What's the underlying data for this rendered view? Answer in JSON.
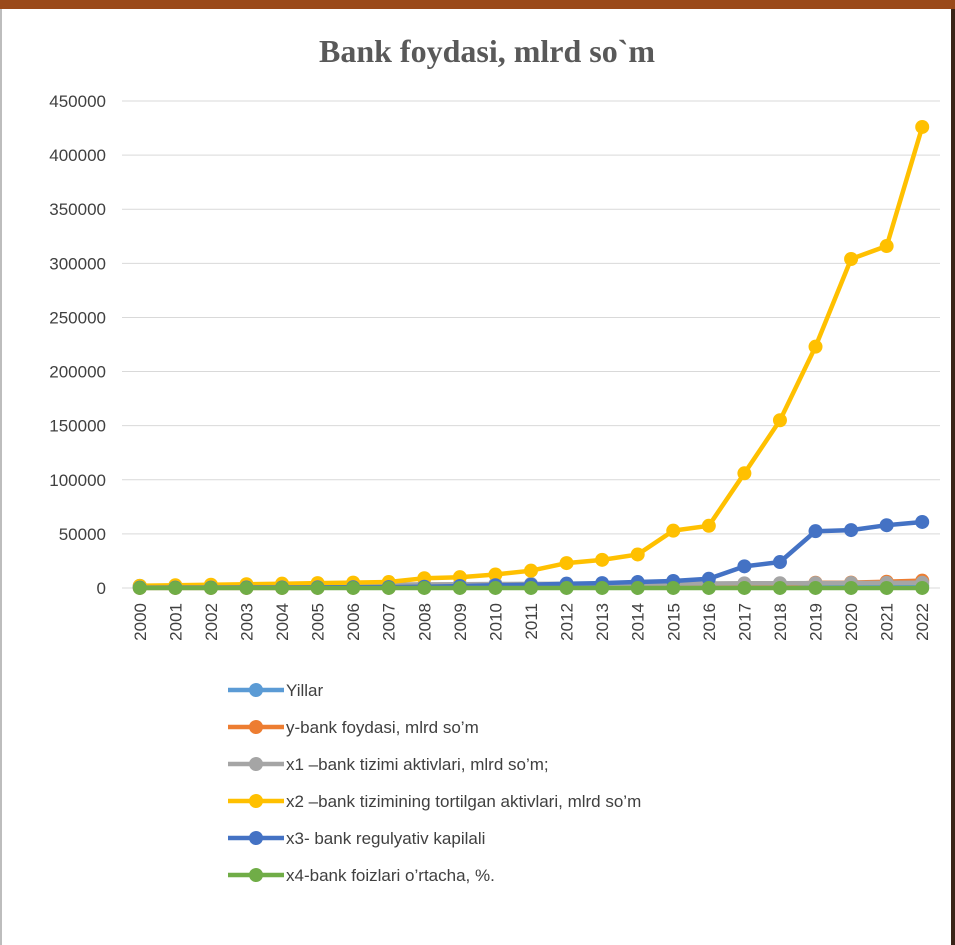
{
  "chart_data": {
    "type": "line",
    "title": "Bank foydasi, mlrd so`m",
    "xlabel": "",
    "ylabel": "",
    "ylim": [
      0,
      450000
    ],
    "yticks": [
      "0",
      "50000",
      "100000",
      "150000",
      "200000",
      "250000",
      "300000",
      "350000",
      "400000",
      "450000"
    ],
    "categories": [
      "2000",
      "2001",
      "2002",
      "2003",
      "2004",
      "2005",
      "2006",
      "2007",
      "2008",
      "2009",
      "2010",
      "2011",
      "2012",
      "2013",
      "2014",
      "2015",
      "2016",
      "2017",
      "2018",
      "2019",
      "2020",
      "2021",
      "2022"
    ],
    "grid": true,
    "legend_position": "bottom",
    "series": [
      {
        "name": "Yillar",
        "color": "#5b9bd5",
        "values": [
          2000,
          2001,
          2002,
          2003,
          2004,
          2005,
          2006,
          2007,
          2008,
          2009,
          2010,
          2011,
          2012,
          2013,
          2014,
          2015,
          2016,
          2017,
          2018,
          2019,
          2020,
          2021,
          2022
        ]
      },
      {
        "name": "y-bank foydasi, mlrd so’m",
        "color": "#ed7d31",
        "values": [
          50,
          60,
          80,
          100,
          120,
          150,
          180,
          220,
          300,
          350,
          400,
          500,
          600,
          800,
          1000,
          1300,
          1800,
          2200,
          3200,
          4900,
          5000,
          5800,
          6800
        ]
      },
      {
        "name": "x1 –bank tizimi aktivlari, mlrd so’m;",
        "color": "#a5a5a5",
        "values": [
          1900,
          2000,
          2100,
          2300,
          2500,
          2700,
          2900,
          3100,
          3300,
          3500,
          3700,
          3800,
          3800,
          3900,
          4000,
          4100,
          4200,
          4300,
          4400,
          4500,
          4600,
          4700,
          4800
        ]
      },
      {
        "name": "x2 –bank tizimining tortilgan aktivlari, mlrd so’m",
        "color": "#ffc000",
        "values": [
          2000,
          2500,
          3000,
          3500,
          4000,
          4500,
          5000,
          5500,
          9000,
          10000,
          12500,
          16000,
          23000,
          26000,
          31000,
          53000,
          57500,
          106000,
          155000,
          223000,
          304000,
          316000,
          426000
        ]
      },
      {
        "name": "x3- bank regulyativ kapilali",
        "color": "#4472c4",
        "values": [
          300,
          350,
          400,
          450,
          500,
          600,
          700,
          800,
          1200,
          1800,
          2500,
          3000,
          4000,
          4500,
          5500,
          6500,
          8500,
          20000,
          24000,
          52500,
          53500,
          58000,
          61000
        ]
      },
      {
        "name": "x4-bank foizlari o’rtacha, %.",
        "color": "#70ad47",
        "values": [
          20,
          20,
          19,
          18,
          18,
          17,
          16,
          15,
          15,
          14,
          14,
          14,
          14,
          14,
          14,
          13,
          14,
          16,
          16,
          17,
          17,
          17,
          18
        ]
      }
    ]
  }
}
